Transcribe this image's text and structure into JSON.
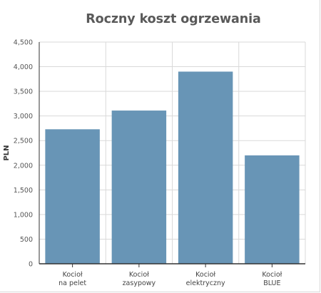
{
  "chart_data": {
    "type": "bar",
    "title": "Roczny koszt ogrzewania",
    "xlabel": "",
    "ylabel": "PLN",
    "categories": [
      [
        "Kocioł",
        "na pelet"
      ],
      [
        "Kocioł",
        "zasypowy"
      ],
      [
        "Kocioł",
        "elektryczny"
      ],
      [
        "Kocioł",
        "BLUE"
      ]
    ],
    "values": [
      2730,
      3110,
      3900,
      2200
    ],
    "ylim": [
      0,
      4500
    ],
    "yticks": [
      0,
      500,
      1000,
      1500,
      2000,
      2500,
      3000,
      3500,
      4000,
      4500
    ],
    "ytick_labels": [
      "0",
      "500",
      "1,000",
      "1,500",
      "2,000",
      "2,500",
      "3,000",
      "3,500",
      "4,000",
      "4,500"
    ],
    "grid": true,
    "legend": "none",
    "colors": {
      "bar": "#6895b6",
      "grid": "#d9d9d9",
      "axis": "#333333"
    }
  }
}
